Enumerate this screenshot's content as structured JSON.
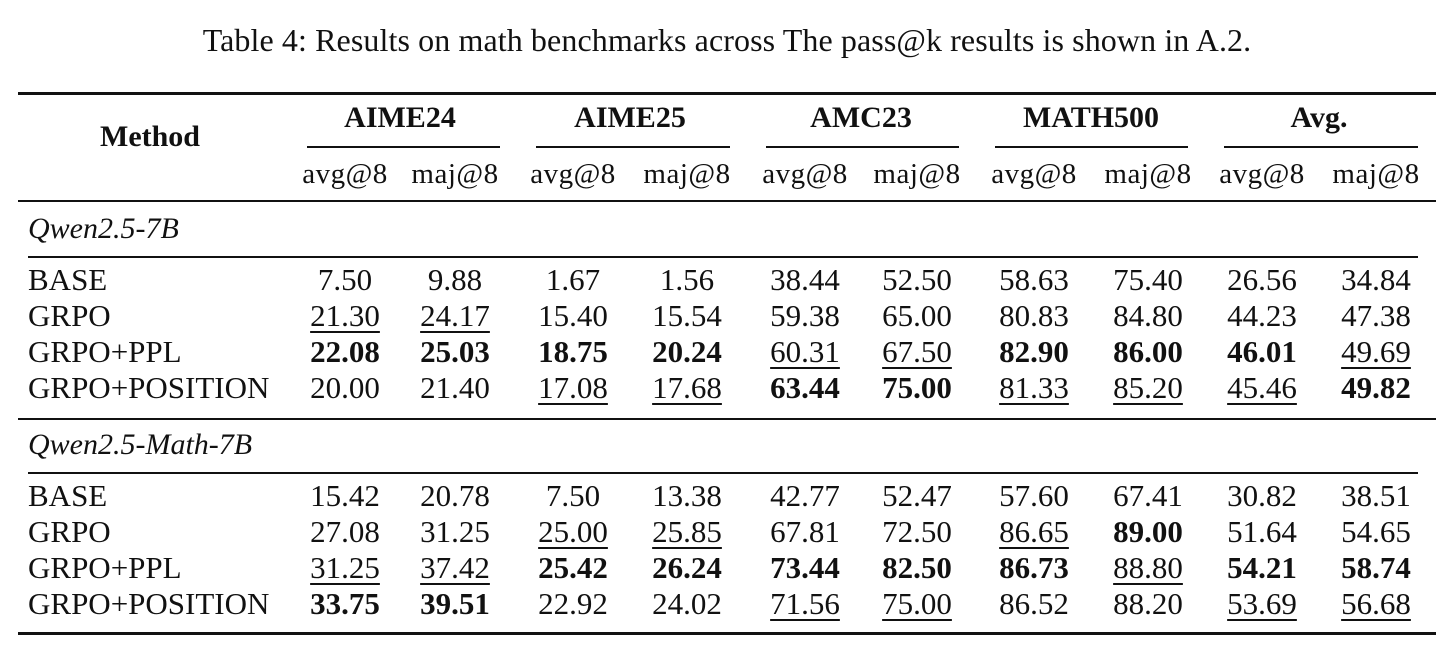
{
  "caption": "Table 4: Results on math benchmarks across The pass@k results is shown in A.2.",
  "header": {
    "method": "Method",
    "benchmarks": [
      "AIME24",
      "AIME25",
      "AMC23",
      "MATH500",
      "Avg."
    ],
    "metrics": [
      "avg@8",
      "maj@8"
    ]
  },
  "groups": [
    {
      "title": "Qwen2.5-7B",
      "rows": [
        {
          "method": "BASE",
          "values": [
            "7.50",
            "9.88",
            "1.67",
            "1.56",
            "38.44",
            "52.50",
            "58.63",
            "75.40",
            "26.56",
            "34.84"
          ],
          "bold": [],
          "underline": []
        },
        {
          "method": "GRPO",
          "values": [
            "21.30",
            "24.17",
            "15.40",
            "15.54",
            "59.38",
            "65.00",
            "80.83",
            "84.80",
            "44.23",
            "47.38"
          ],
          "bold": [],
          "underline": [
            0,
            1
          ]
        },
        {
          "method": "GRPO+PPL",
          "values": [
            "22.08",
            "25.03",
            "18.75",
            "20.24",
            "60.31",
            "67.50",
            "82.90",
            "86.00",
            "46.01",
            "49.69"
          ],
          "bold": [
            0,
            1,
            2,
            3,
            6,
            7,
            8
          ],
          "underline": [
            4,
            5,
            9
          ]
        },
        {
          "method": "GRPO+POSITION",
          "values": [
            "20.00",
            "21.40",
            "17.08",
            "17.68",
            "63.44",
            "75.00",
            "81.33",
            "85.20",
            "45.46",
            "49.82"
          ],
          "bold": [
            4,
            5,
            9
          ],
          "underline": [
            2,
            3,
            6,
            7,
            8
          ]
        }
      ]
    },
    {
      "title": "Qwen2.5-Math-7B",
      "rows": [
        {
          "method": "BASE",
          "values": [
            "15.42",
            "20.78",
            "7.50",
            "13.38",
            "42.77",
            "52.47",
            "57.60",
            "67.41",
            "30.82",
            "38.51"
          ],
          "bold": [],
          "underline": []
        },
        {
          "method": "GRPO",
          "values": [
            "27.08",
            "31.25",
            "25.00",
            "25.85",
            "67.81",
            "72.50",
            "86.65",
            "89.00",
            "51.64",
            "54.65"
          ],
          "bold": [
            7
          ],
          "underline": [
            2,
            3,
            6
          ]
        },
        {
          "method": "GRPO+PPL",
          "values": [
            "31.25",
            "37.42",
            "25.42",
            "26.24",
            "73.44",
            "82.50",
            "86.73",
            "88.80",
            "54.21",
            "58.74"
          ],
          "bold": [
            2,
            3,
            4,
            5,
            6,
            8,
            9
          ],
          "underline": [
            0,
            1,
            7
          ]
        },
        {
          "method": "GRPO+POSITION",
          "values": [
            "33.75",
            "39.51",
            "22.92",
            "24.02",
            "71.56",
            "75.00",
            "86.52",
            "88.20",
            "53.69",
            "56.68"
          ],
          "bold": [
            0,
            1
          ],
          "underline": [
            4,
            5,
            8,
            9
          ]
        }
      ]
    }
  ]
}
